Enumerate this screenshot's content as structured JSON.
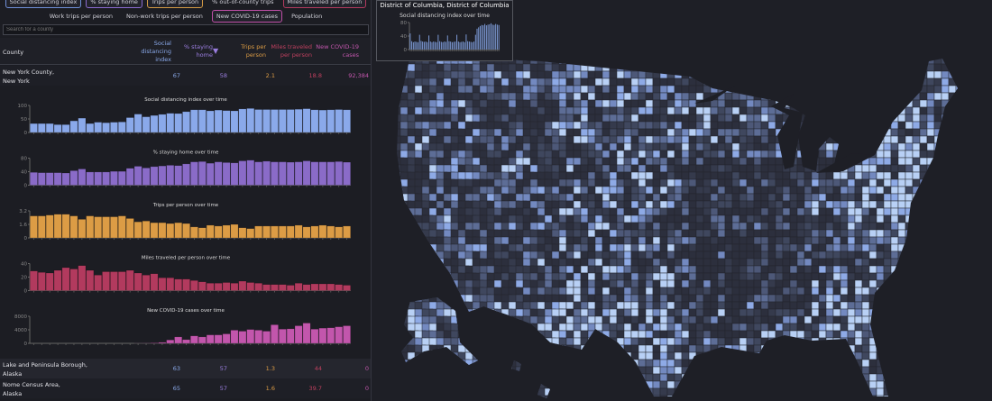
{
  "metric_buttons": [
    {
      "label": "Social distancing index",
      "color": "#6f8fd8"
    },
    {
      "label": "% staying home",
      "color": "#8a6bd0"
    },
    {
      "label": "Trips per person",
      "color": "#d39a45"
    },
    {
      "label": "% out-of-county trips",
      "color": ""
    },
    {
      "label": "Miles traveled per person",
      "color": "#b23a5e"
    }
  ],
  "metric_buttons_2": [
    {
      "label": "Work trips per person",
      "color": ""
    },
    {
      "label": "Non-work trips per person",
      "color": ""
    },
    {
      "label": "New COVID-19 cases",
      "color": "#c04fa8"
    },
    {
      "label": "Population",
      "color": ""
    }
  ],
  "search": {
    "placeholder": "Search for a county"
  },
  "table": {
    "headers": {
      "county": "County",
      "sdi": "Social distancing index",
      "home": "% staying home",
      "sort_icon": "▼",
      "trips": "Trips per person",
      "miles": "Miles traveled per person",
      "cases": "New COVID-19 cases"
    },
    "rows": [
      {
        "name1": "New York County,",
        "name2": "New York",
        "sdi": "67",
        "home": "58",
        "trips": "2.1",
        "miles": "18.8",
        "cases": "92,384"
      },
      {
        "name1": "Lake and Peninsula Borough,",
        "name2": "Alaska",
        "sdi": "63",
        "home": "57",
        "trips": "1.3",
        "miles": "44",
        "cases": "0"
      },
      {
        "name1": "Nome Census Area,",
        "name2": "Alaska",
        "sdi": "65",
        "home": "57",
        "trips": "1.6",
        "miles": "39.7",
        "cases": "0"
      }
    ]
  },
  "colors": {
    "sdi": "#8aa9ea",
    "home": "#8a6bc8",
    "trips": "#dc9c45",
    "miles": "#b23a5e",
    "cases": "#c256ac"
  },
  "chart_data": [
    {
      "type": "bar",
      "title": "Social distancing index over time",
      "ylim": [
        0,
        100
      ],
      "yticks": [
        "0",
        "50",
        "100"
      ],
      "color": "#8aa9ea",
      "values": [
        33,
        33,
        33,
        29,
        29,
        43,
        53,
        33,
        38,
        36,
        38,
        39,
        55,
        68,
        58,
        63,
        67,
        71,
        70,
        77,
        84,
        84,
        80,
        83,
        81,
        80,
        87,
        89,
        85,
        85,
        85,
        85,
        85,
        86,
        88,
        84,
        83,
        84,
        85,
        84
      ]
    },
    {
      "type": "bar",
      "title": "% staying home over time",
      "ylim": [
        0,
        80
      ],
      "yticks": [
        "0",
        "40",
        "80"
      ],
      "color": "#8a6bc8",
      "values": [
        38,
        37,
        37,
        37,
        36,
        43,
        48,
        39,
        39,
        39,
        41,
        41,
        50,
        56,
        51,
        55,
        57,
        59,
        58,
        63,
        69,
        70,
        65,
        69,
        67,
        66,
        72,
        74,
        69,
        71,
        69,
        69,
        68,
        69,
        72,
        69,
        69,
        69,
        70,
        68
      ]
    },
    {
      "type": "bar",
      "title": "Trips per person over time",
      "ylim": [
        0,
        3.2
      ],
      "yticks": [
        "0",
        "1.6",
        "3.2"
      ],
      "color": "#dc9c45",
      "values": [
        2.6,
        2.6,
        2.7,
        2.8,
        2.8,
        2.6,
        2.2,
        2.6,
        2.5,
        2.5,
        2.5,
        2.6,
        2.3,
        1.9,
        2.0,
        1.8,
        1.8,
        1.7,
        1.8,
        1.7,
        1.3,
        1.2,
        1.5,
        1.4,
        1.5,
        1.6,
        1.2,
        1.1,
        1.4,
        1.4,
        1.4,
        1.4,
        1.4,
        1.5,
        1.3,
        1.4,
        1.5,
        1.4,
        1.3,
        1.4
      ]
    },
    {
      "type": "bar",
      "title": "Miles traveled per person over time",
      "ylim": [
        0,
        40
      ],
      "yticks": [
        "0",
        "20",
        "40"
      ],
      "color": "#b23a5e",
      "values": [
        29,
        27,
        26,
        30,
        34,
        32,
        37,
        30,
        23,
        28,
        28,
        28,
        30,
        26,
        23,
        25,
        19,
        19,
        17,
        17,
        15,
        13,
        11,
        11,
        12,
        11,
        14,
        12,
        11,
        9,
        9,
        9,
        8,
        11,
        9,
        10,
        10,
        10,
        9,
        8
      ]
    },
    {
      "type": "bar",
      "title": "New COVID-19 cases over time",
      "ylim": [
        0,
        8000
      ],
      "yticks": [
        "0",
        "4000",
        "8000"
      ],
      "color": "#c256ac",
      "values": [
        0,
        0,
        0,
        0,
        0,
        0,
        0,
        0,
        0,
        0,
        0,
        0,
        0,
        20,
        50,
        150,
        300,
        1000,
        1900,
        1100,
        2200,
        1900,
        2500,
        2500,
        2800,
        3900,
        3600,
        4100,
        3900,
        3600,
        5500,
        4200,
        4300,
        5200,
        6000,
        4200,
        4500,
        4600,
        4900,
        5200
      ]
    }
  ],
  "tooltip": {
    "title": "District of Columbia, District of Columbia",
    "chart_data": {
      "type": "bar",
      "title": "Social distancing index over time",
      "ylim": [
        0,
        80
      ],
      "yticks": [
        "0",
        "40",
        "80"
      ],
      "color": "#8aa9ea",
      "values": [
        48,
        25,
        22,
        24,
        23,
        22,
        44,
        26,
        24,
        23,
        24,
        22,
        42,
        24,
        22,
        24,
        23,
        22,
        44,
        25,
        23,
        22,
        24,
        23,
        42,
        25,
        24,
        22,
        23,
        24,
        44,
        24,
        22,
        23,
        24,
        22,
        45,
        25,
        24,
        23,
        22,
        24,
        44,
        62,
        66,
        70,
        73,
        72,
        76,
        72,
        74,
        75,
        78,
        74,
        73,
        76,
        74,
        73
      ]
    }
  }
}
